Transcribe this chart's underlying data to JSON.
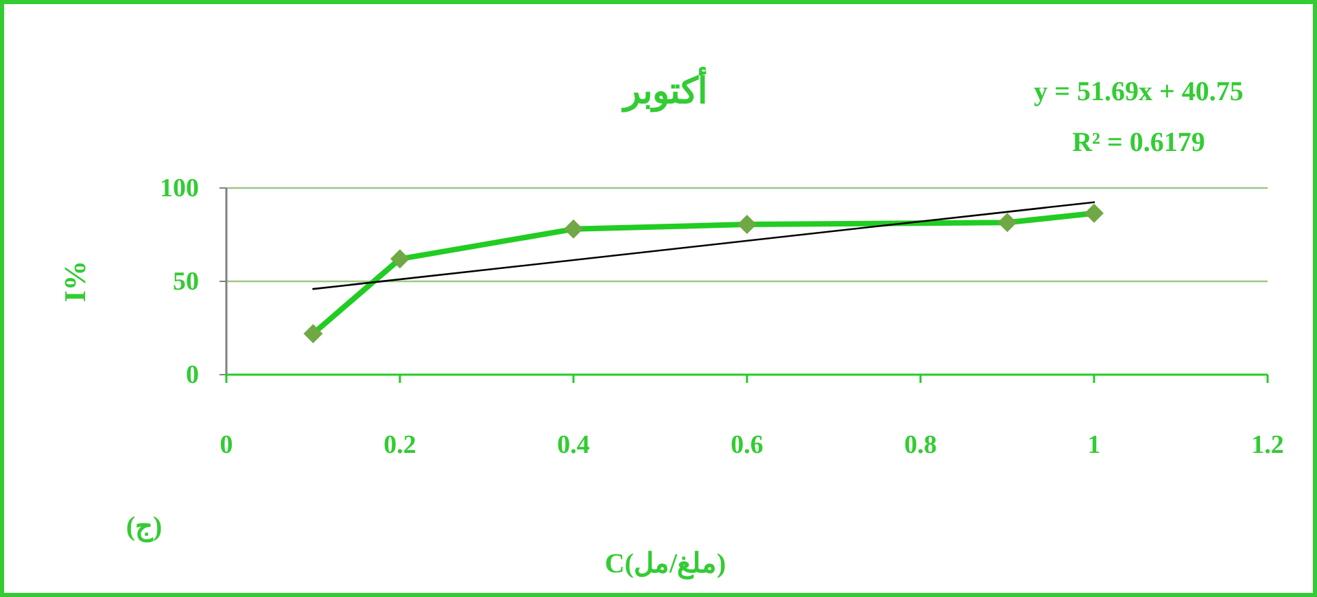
{
  "chart_data": {
    "type": "line",
    "title": "أكتوبر",
    "xlabel": "C(ملغ/مل)",
    "ylabel": "I%",
    "annotations": [
      "y = 51.69x + 40.75",
      "R² = 0.6179",
      "(ج)"
    ],
    "series": [
      {
        "color": "#22cc22",
        "x": [
          0.1,
          0.2,
          0.4,
          0.6,
          0.9,
          1
        ],
        "values": [
          22,
          62,
          78,
          80.5,
          81.5,
          86.5
        ],
        "marker": "none"
      },
      {
        "type": "scatter",
        "color": "#70a845",
        "x": [
          0.1,
          0.2,
          0.4,
          0.6,
          0.9,
          1
        ],
        "values": [
          22,
          62,
          78,
          80.5,
          81.5,
          86.5
        ],
        "marker": "diamond"
      },
      {
        "color": "#000000",
        "x": [
          0.1,
          1
        ],
        "values": [
          45.9,
          92.4
        ],
        "marker": "none"
      }
    ],
    "xlim": [
      0,
      1.2
    ],
    "xticks": [
      0,
      0.2,
      0.4,
      0.6,
      0.8,
      1,
      1.2
    ],
    "ylim": [
      0,
      100
    ],
    "yticks": [
      0,
      50,
      100
    ],
    "ref_lines": [
      {
        "axis": "y",
        "value": 50,
        "color": "#9cc884"
      },
      {
        "axis": "y",
        "value": 100,
        "color": "#9cc884"
      }
    ]
  }
}
